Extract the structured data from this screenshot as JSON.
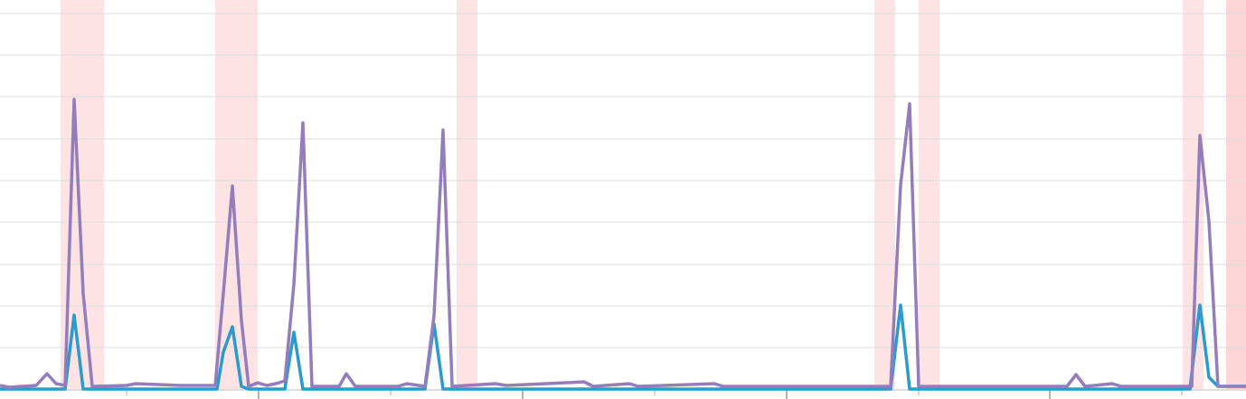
{
  "chart_data": {
    "type": "line",
    "xlim": [
      0,
      1378
    ],
    "ylim": [
      0,
      442
    ],
    "xticks": [
      140,
      286,
      432,
      578,
      724,
      870,
      1016,
      1161,
      1307
    ],
    "yticks": [
      46,
      92,
      138,
      185,
      231,
      277,
      324,
      370,
      416
    ],
    "grid": true,
    "bands": [
      {
        "start": 67,
        "end": 115,
        "color": "#fde3e4"
      },
      {
        "start": 238,
        "end": 285,
        "color": "#fde3e4"
      },
      {
        "start": 505,
        "end": 528,
        "color": "#fde3e4"
      },
      {
        "start": 967,
        "end": 990,
        "color": "#fde3e4"
      },
      {
        "start": 1016,
        "end": 1039,
        "color": "#fde3e4"
      },
      {
        "start": 1308,
        "end": 1331,
        "color": "#fde3e4"
      },
      {
        "start": 1356,
        "end": 1378,
        "color": "#fcd6d7"
      }
    ],
    "series": [
      {
        "color": "#937dbd",
        "x": [
          0,
          10,
          40,
          52,
          62,
          72,
          82,
          92,
          102,
          140,
          150,
          200,
          238,
          247,
          257,
          267,
          275,
          285,
          295,
          305,
          315,
          325,
          335,
          345,
          375,
          383,
          393,
          440,
          450,
          470,
          480,
          490,
          500,
          548,
          560,
          646,
          656,
          696,
          706,
          790,
          800,
          985,
          996,
          1006,
          1016,
          1180,
          1190,
          1200,
          1230,
          1240,
          1318,
          1327,
          1337,
          1347,
          1378
        ],
        "values": [
          4,
          2,
          4,
          17,
          6,
          4,
          321,
          106,
          3,
          4,
          6,
          4,
          4,
          106,
          225,
          76,
          3,
          7,
          4,
          6,
          9,
          116,
          295,
          3,
          3,
          17,
          3,
          3,
          6,
          3,
          81,
          287,
          3,
          6,
          4,
          8,
          3,
          6,
          3,
          6,
          3,
          3,
          226,
          316,
          3,
          3,
          16,
          3,
          6,
          3,
          3,
          281,
          186,
          3,
          3
        ]
      },
      {
        "color": "#2b9acd",
        "x": [
          0,
          72,
          82,
          92,
          240,
          247,
          257,
          267,
          275,
          315,
          325,
          335,
          470,
          480,
          490,
          985,
          996,
          1006,
          1316,
          1327,
          1337,
          1347,
          1378
        ],
        "values": [
          0,
          0,
          82,
          0,
          0,
          41,
          69,
          3,
          0,
          0,
          63,
          0,
          0,
          72,
          0,
          0,
          93,
          0,
          0,
          93,
          13,
          3,
          3
        ]
      }
    ]
  }
}
